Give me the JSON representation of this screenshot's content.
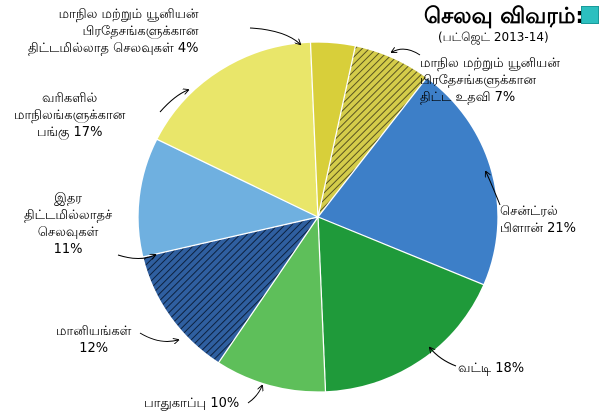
{
  "header": {
    "title": "செலவு விவரம்:",
    "subtitle": "(பட்ஜெட் 2013-14)",
    "accent_color": "#2cbfbf"
  },
  "chart_data": {
    "type": "pie",
    "title": "செலவு விவரம்:",
    "subtitle": "(பட்ஜெட் 2013-14)",
    "slices": [
      {
        "label": "மாநில மற்றும் யூனியன் பிரதேசங்களுக்கான திட்ட உதவி 7%",
        "value": 7,
        "color": "#d4cc4a",
        "pattern": "hatch"
      },
      {
        "label": "சென்ட்ரல் பிளான் 21%",
        "value": 21,
        "color": "#3d7fc8",
        "pattern": "solid"
      },
      {
        "label": "வட்டி 18%",
        "value": 18,
        "color": "#1f9a3a",
        "pattern": "solid"
      },
      {
        "label": "பாதுகாப்பு 10%",
        "value": 10,
        "color": "#5ebf5a",
        "pattern": "solid"
      },
      {
        "label": "மானியங்கள் 12%",
        "value": 12,
        "color": "#2f5fa0",
        "pattern": "hatch"
      },
      {
        "label": "இதர திட்டமில்லாதச் செலவுகள் 11%",
        "value": 11,
        "color": "#6fb0e0",
        "pattern": "solid"
      },
      {
        "label": "வரிகளில் மாநிலங்களுக்கான பங்கு 17%",
        "value": 17,
        "color": "#e9e66a",
        "pattern": "solid"
      },
      {
        "label": "மாநில மற்றும் யூனியன் பிரதேசங்களுக்கான திட்டமில்லாத செலவுகள் 4%",
        "value": 4,
        "color": "#d8cf3a",
        "pattern": "solid"
      }
    ]
  },
  "labels": {
    "plan_assist": "மாநில மற்றும் யூனியன்\nபிரதேசங்களுக்கான\nதிட்ட உதவி 7%",
    "central_plan": "சென்ட்ரல்\nபிளான் 21%",
    "interest": "வட்டி 18%",
    "defence": "பாதுகாப்பு 10%",
    "subsidies": "மானியங்கள்\n12%",
    "other_nonplan": "இதர\nதிட்டமில்லாதச்\nசெலவுகள்\n11%",
    "tax_share": "வரிகளில்\nமாநிலங்களுக்கான\nபங்கு 17%",
    "nonplan_states": "மாநில மற்றும் யூனியன்\nபிரதேசங்களுக்கான\nதிட்டமில்லாத செலவுகள் 4%"
  }
}
